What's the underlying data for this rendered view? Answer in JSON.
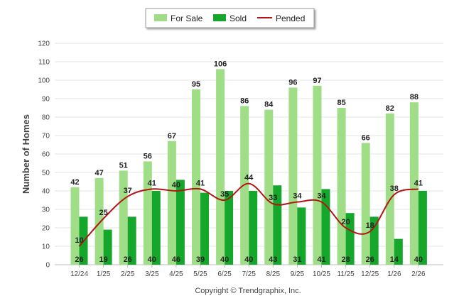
{
  "chart_data": {
    "type": "bar",
    "categories": [
      "12/24",
      "1/25",
      "2/25",
      "3/25",
      "4/25",
      "5/25",
      "6/25",
      "7/25",
      "8/25",
      "9/25",
      "10/25",
      "11/25",
      "12/25",
      "1/26",
      "2/26"
    ],
    "series": [
      {
        "name": "For Sale",
        "type": "bar",
        "color": "#a0dd87",
        "values": [
          42,
          47,
          51,
          56,
          67,
          95,
          106,
          86,
          84,
          96,
          97,
          85,
          66,
          82,
          88
        ]
      },
      {
        "name": "Sold",
        "type": "bar",
        "color": "#14a72c",
        "values": [
          26,
          19,
          26,
          40,
          46,
          39,
          40,
          40,
          43,
          31,
          41,
          28,
          26,
          14,
          40
        ]
      },
      {
        "name": "Pended",
        "type": "line",
        "color": "#b31515",
        "values": [
          10,
          25,
          37,
          41,
          40,
          41,
          35,
          44,
          33,
          34,
          34,
          20,
          18,
          38,
          41
        ]
      }
    ],
    "ylabel": "Number of Homes",
    "xlabel": "",
    "ylim": [
      0,
      120
    ],
    "yticks": [
      0,
      10,
      20,
      30,
      40,
      50,
      60,
      70,
      80,
      90,
      100,
      110,
      120
    ],
    "grid": true,
    "legend_position": "top-center"
  },
  "footer": {
    "copyright": "Copyright © Trendgraphix, Inc."
  }
}
